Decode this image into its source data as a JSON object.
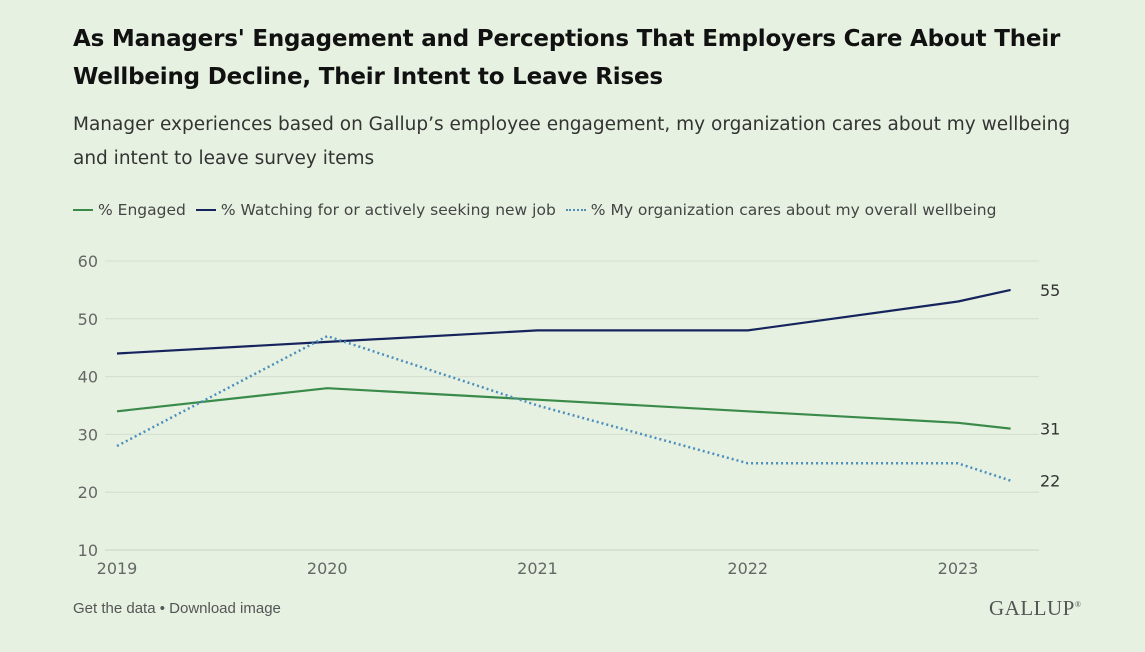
{
  "title": "As Managers' Engagement and Perceptions That Employers Care About Their Wellbeing Decline, Their Intent to Leave Rises",
  "subtitle": "Manager experiences based on Gallup’s employee engagement, my organization cares about my wellbeing and intent to leave survey items",
  "footer": {
    "get_data": "Get the data",
    "separator": " • ",
    "download": "Download image",
    "logo": "GALLUP",
    "logo_mark": "®"
  },
  "chart_data": {
    "type": "line",
    "x": [
      2019,
      2020,
      2021,
      2022,
      2023,
      2023.25
    ],
    "x_ticks": [
      "2019",
      "2020",
      "2021",
      "2022",
      "2023"
    ],
    "xlim": [
      2019,
      2023.25
    ],
    "ylim": [
      10,
      60
    ],
    "y_ticks": [
      10,
      20,
      30,
      40,
      50,
      60
    ],
    "grid": true,
    "legend_position": "top-left",
    "series": [
      {
        "name": "% Engaged",
        "values": [
          34,
          38,
          36,
          34,
          32,
          31
        ],
        "color": "#3a8a4a",
        "style": "solid",
        "end_label": "31"
      },
      {
        "name": "% Watching for or actively seeking new job",
        "values": [
          44,
          46,
          48,
          48,
          53,
          55
        ],
        "color": "#16245e",
        "style": "solid",
        "end_label": "55"
      },
      {
        "name": "% My organization cares about my overall wellbeing",
        "values": [
          28,
          47,
          35,
          25,
          25,
          22
        ],
        "color": "#4c8fbd",
        "style": "dotted",
        "end_label": "22"
      }
    ]
  }
}
